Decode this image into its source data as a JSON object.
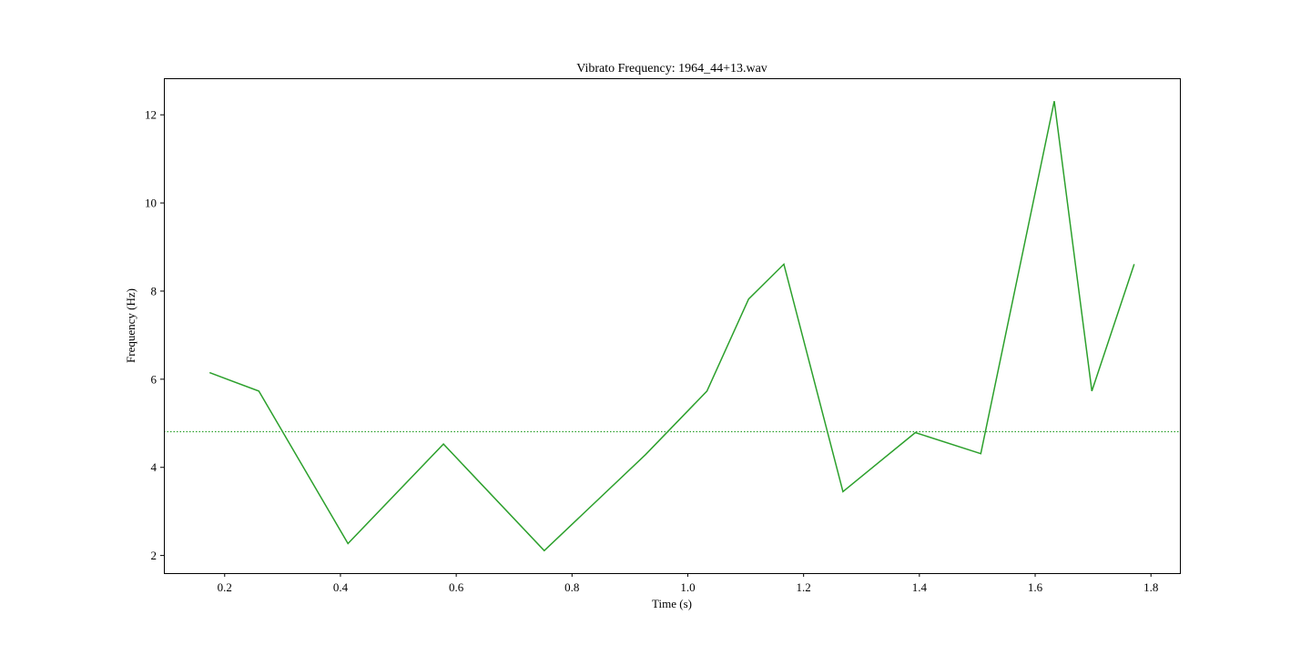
{
  "chart_data": {
    "type": "line",
    "title": "Vibrato Frequency: 1964_44+13.wav",
    "xlabel": "Time (s)",
    "ylabel": "Frequency (Hz)",
    "xlim": [
      0.095,
      1.85
    ],
    "ylim": [
      1.6,
      12.83
    ],
    "xticks": [
      0.2,
      0.4,
      0.6,
      0.8,
      1.0,
      1.2,
      1.4,
      1.6,
      1.8
    ],
    "xtick_labels": [
      "0.2",
      "0.4",
      "0.6",
      "0.8",
      "1.0",
      "1.2",
      "1.4",
      "1.6",
      "1.8"
    ],
    "yticks": [
      2,
      4,
      6,
      8,
      10,
      12
    ],
    "ytick_labels": [
      "2",
      "4",
      "6",
      "8",
      "10",
      "12"
    ],
    "grid": false,
    "series": [
      {
        "color": "#2ca02c",
        "x": [
          0.174,
          0.259,
          0.413,
          0.578,
          0.752,
          0.927,
          1.033,
          1.105,
          1.166,
          1.268,
          1.393,
          1.506,
          1.633,
          1.698,
          1.771
        ],
        "y": [
          6.15,
          5.73,
          2.27,
          4.53,
          2.11,
          4.29,
          5.73,
          7.82,
          8.61,
          3.45,
          4.79,
          4.31,
          12.31,
          5.73,
          8.61
        ]
      }
    ],
    "reference_lines": [
      {
        "orientation": "horizontal",
        "y": 4.81,
        "style": "dotted",
        "color": "#2ca02c"
      }
    ]
  }
}
